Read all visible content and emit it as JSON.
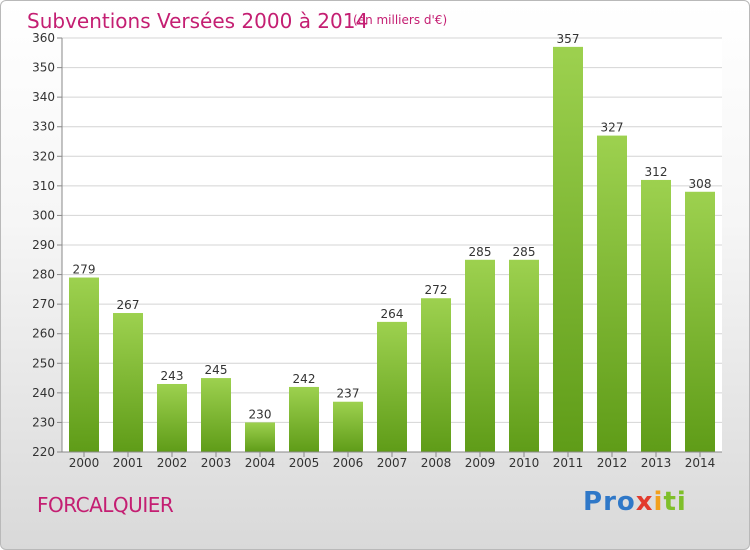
{
  "header": {
    "title": "Subventions Versées 2000 à 2014",
    "subtitle": "(en milliers d'€)"
  },
  "footer": {
    "town": "FORCALQUIER",
    "brand": "Proxiti",
    "brand_letters": [
      {
        "ch": "P",
        "color": "#2f78c8"
      },
      {
        "ch": "r",
        "color": "#2f78c8"
      },
      {
        "ch": "o",
        "color": "#2f78c8"
      },
      {
        "ch": "x",
        "color": "#e23b2e"
      },
      {
        "ch": "i",
        "color": "#f2a01c"
      },
      {
        "ch": "t",
        "color": "#7fbf2a"
      },
      {
        "ch": "i",
        "color": "#7fbf2a"
      }
    ]
  },
  "colors": {
    "title": "#c41e72",
    "bar_top": "#9dd14f",
    "bar_bottom": "#5f9c18",
    "grid": "#d4d4d4",
    "axis_text": "#333333"
  },
  "chart_data": {
    "type": "bar",
    "categories": [
      "2000",
      "2001",
      "2002",
      "2003",
      "2004",
      "2005",
      "2006",
      "2007",
      "2008",
      "2009",
      "2010",
      "2011",
      "2012",
      "2013",
      "2014"
    ],
    "values": [
      279,
      267,
      243,
      245,
      230,
      242,
      237,
      264,
      272,
      285,
      285,
      357,
      327,
      312,
      308
    ],
    "ylim": [
      220,
      360
    ],
    "ytick_step": 10,
    "grid": true
  }
}
